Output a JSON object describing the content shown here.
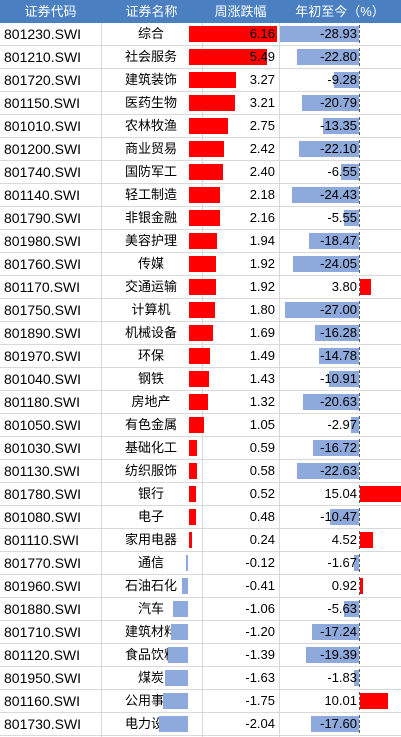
{
  "headers": {
    "code": "证券代码",
    "name": "证券名称",
    "weekly_change": "周涨跌幅（%）",
    "ytd_change": "年初至今（%）"
  },
  "colors": {
    "header_bg": "#4a7fc1",
    "positive_bar": "#ff0000",
    "negative_bar": "#8ea9db"
  },
  "rows": [
    {
      "code": "801230.SWI",
      "name": "综合",
      "weekly": "6.16",
      "ytd": "-28.93"
    },
    {
      "code": "801210.SWI",
      "name": "社会服务",
      "weekly": "5.49",
      "ytd": "-22.80"
    },
    {
      "code": "801720.SWI",
      "name": "建筑装饰",
      "weekly": "3.27",
      "ytd": "-9.28"
    },
    {
      "code": "801150.SWI",
      "name": "医药生物",
      "weekly": "3.21",
      "ytd": "-20.79"
    },
    {
      "code": "801010.SWI",
      "name": "农林牧渔",
      "weekly": "2.75",
      "ytd": "-13.35"
    },
    {
      "code": "801200.SWI",
      "name": "商业贸易",
      "weekly": "2.42",
      "ytd": "-22.10"
    },
    {
      "code": "801740.SWI",
      "name": "国防军工",
      "weekly": "2.40",
      "ytd": "-6.55"
    },
    {
      "code": "801140.SWI",
      "name": "轻工制造",
      "weekly": "2.18",
      "ytd": "-24.43"
    },
    {
      "code": "801790.SWI",
      "name": "非银金融",
      "weekly": "2.16",
      "ytd": "-5.55"
    },
    {
      "code": "801980.SWI",
      "name": "美容护理",
      "weekly": "1.94",
      "ytd": "-18.47"
    },
    {
      "code": "801760.SWI",
      "name": "传媒",
      "weekly": "1.92",
      "ytd": "-24.05"
    },
    {
      "code": "801170.SWI",
      "name": "交通运输",
      "weekly": "1.92",
      "ytd": "3.80"
    },
    {
      "code": "801750.SWI",
      "name": "计算机",
      "weekly": "1.80",
      "ytd": "-27.00"
    },
    {
      "code": "801890.SWI",
      "name": "机械设备",
      "weekly": "1.69",
      "ytd": "-16.28"
    },
    {
      "code": "801970.SWI",
      "name": "环保",
      "weekly": "1.49",
      "ytd": "-14.78"
    },
    {
      "code": "801040.SWI",
      "name": "钢铁",
      "weekly": "1.43",
      "ytd": "-10.91"
    },
    {
      "code": "801180.SWI",
      "name": "房地产",
      "weekly": "1.32",
      "ytd": "-20.63"
    },
    {
      "code": "801050.SWI",
      "name": "有色金属",
      "weekly": "1.05",
      "ytd": "-2.97"
    },
    {
      "code": "801030.SWI",
      "name": "基础化工",
      "weekly": "0.59",
      "ytd": "-16.72"
    },
    {
      "code": "801130.SWI",
      "name": "纺织服饰",
      "weekly": "0.58",
      "ytd": "-22.63"
    },
    {
      "code": "801780.SWI",
      "name": "银行",
      "weekly": "0.52",
      "ytd": "15.04"
    },
    {
      "code": "801080.SWI",
      "name": "电子",
      "weekly": "0.48",
      "ytd": "-10.47"
    },
    {
      "code": "801110.SWI",
      "name": "家用电器",
      "weekly": "0.24",
      "ytd": "4.52"
    },
    {
      "code": "801770.SWI",
      "name": "通信",
      "weekly": "-0.12",
      "ytd": "-1.67"
    },
    {
      "code": "801960.SWI",
      "name": "石油石化",
      "weekly": "-0.41",
      "ytd": "0.92"
    },
    {
      "code": "801880.SWI",
      "name": "汽车",
      "weekly": "-1.06",
      "ytd": "-5.63"
    },
    {
      "code": "801710.SWI",
      "name": "建筑材料",
      "weekly": "-1.20",
      "ytd": "-17.24"
    },
    {
      "code": "801120.SWI",
      "name": "食品饮料",
      "weekly": "-1.39",
      "ytd": "-19.39"
    },
    {
      "code": "801950.SWI",
      "name": "煤炭",
      "weekly": "-1.63",
      "ytd": "-1.83"
    },
    {
      "code": "801160.SWI",
      "name": "公用事业",
      "weekly": "-1.75",
      "ytd": "10.01"
    },
    {
      "code": "801730.SWI",
      "name": "电力设备",
      "weekly": "-2.04",
      "ytd": "-17.60"
    }
  ]
}
